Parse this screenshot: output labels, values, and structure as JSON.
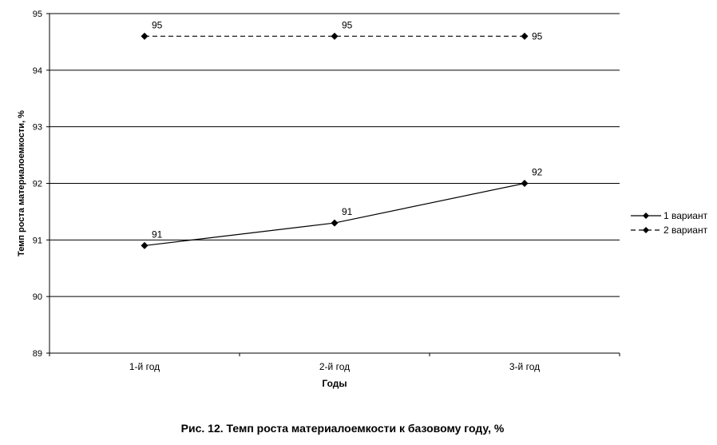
{
  "chart_data": {
    "type": "line",
    "xlabel": "Годы",
    "ylabel": "Темп роста материалоемкости, %",
    "categories": [
      "1-й год",
      "2-й год",
      "3-й год"
    ],
    "ylim": [
      89,
      95
    ],
    "yticks": [
      89,
      90,
      91,
      92,
      93,
      94,
      95
    ],
    "grid": true,
    "legend_position": "right",
    "series": [
      {
        "name": "1 вариант",
        "values": [
          90.9,
          91.3,
          92.0
        ],
        "labels": [
          "91",
          "91",
          "92"
        ],
        "line": "solid",
        "color": "#000000"
      },
      {
        "name": "2 вариант",
        "values": [
          94.6,
          94.6,
          94.6
        ],
        "labels": [
          "95",
          "95",
          "95"
        ],
        "line": "dashed",
        "color": "#000000"
      }
    ]
  },
  "caption": "Рис. 12. Темп роста материалоемкости к базовому году, %"
}
